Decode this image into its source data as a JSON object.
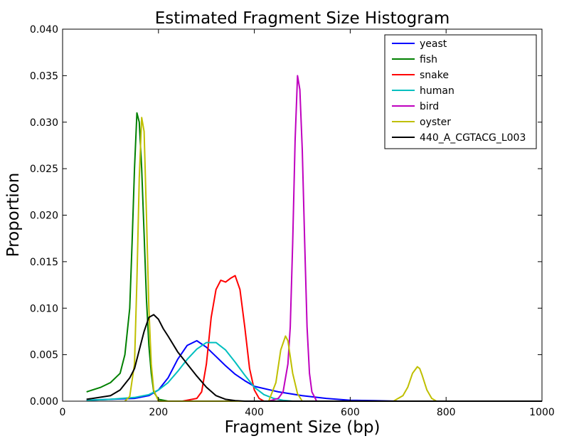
{
  "chart_data": {
    "type": "line",
    "title": "Estimated Fragment Size Histogram",
    "xlabel": "Fragment Size (bp)",
    "ylabel": "Proportion",
    "xlim": [
      0,
      1000
    ],
    "ylim": [
      0,
      0.04
    ],
    "xticks": [
      "0",
      "200",
      "400",
      "600",
      "800",
      "1000"
    ],
    "yticks": [
      "0.000",
      "0.005",
      "0.010",
      "0.015",
      "0.020",
      "0.025",
      "0.030",
      "0.035",
      "0.040"
    ],
    "grid": false,
    "legend_position": "top-right",
    "series": [
      {
        "name": "yeast",
        "color": "#0000ff",
        "x": [
          50,
          100,
          150,
          180,
          200,
          220,
          240,
          260,
          280,
          300,
          320,
          340,
          360,
          380,
          400,
          450,
          500,
          550,
          600,
          650,
          700,
          1000
        ],
        "y": [
          0.0001,
          0.0002,
          0.0003,
          0.0006,
          0.0012,
          0.0025,
          0.0045,
          0.006,
          0.0065,
          0.0058,
          0.0048,
          0.0038,
          0.0029,
          0.0022,
          0.0016,
          0.001,
          0.0006,
          0.0003,
          0.0001,
          5e-05,
          0.0,
          0.0
        ]
      },
      {
        "name": "fish",
        "color": "#008000",
        "x": [
          50,
          80,
          100,
          120,
          130,
          140,
          145,
          150,
          155,
          160,
          165,
          170,
          175,
          180,
          185,
          190,
          200,
          220,
          1000
        ],
        "y": [
          0.001,
          0.0015,
          0.002,
          0.003,
          0.005,
          0.01,
          0.017,
          0.025,
          0.031,
          0.03,
          0.025,
          0.018,
          0.011,
          0.006,
          0.003,
          0.001,
          0.0002,
          0.0,
          0.0
        ]
      },
      {
        "name": "snake",
        "color": "#ff0000",
        "x": [
          250,
          280,
          290,
          300,
          310,
          320,
          330,
          340,
          350,
          360,
          370,
          380,
          390,
          400,
          410,
          420,
          1000
        ],
        "y": [
          0.0,
          0.0003,
          0.001,
          0.004,
          0.009,
          0.012,
          0.013,
          0.0128,
          0.0132,
          0.0135,
          0.012,
          0.008,
          0.0035,
          0.0012,
          0.0003,
          0.0,
          0.0
        ]
      },
      {
        "name": "human",
        "color": "#00bfbf",
        "x": [
          50,
          100,
          150,
          180,
          200,
          220,
          240,
          260,
          280,
          300,
          320,
          340,
          360,
          380,
          400,
          420,
          440,
          460,
          480,
          1000
        ],
        "y": [
          0.0001,
          0.0002,
          0.0004,
          0.0007,
          0.0012,
          0.002,
          0.0032,
          0.0045,
          0.0056,
          0.0063,
          0.0063,
          0.0055,
          0.0042,
          0.0028,
          0.0015,
          0.0007,
          0.0003,
          0.0001,
          0.0,
          0.0
        ]
      },
      {
        "name": "bird",
        "color": "#bf00bf",
        "x": [
          430,
          450,
          460,
          470,
          475,
          480,
          485,
          490,
          495,
          500,
          505,
          510,
          515,
          520,
          530,
          1000
        ],
        "y": [
          0.0,
          0.0003,
          0.001,
          0.004,
          0.008,
          0.017,
          0.028,
          0.035,
          0.0335,
          0.027,
          0.017,
          0.008,
          0.003,
          0.001,
          0.0,
          0.0
        ]
      },
      {
        "name": "oyster",
        "color": "#bfbf00",
        "x": [
          130,
          140,
          150,
          155,
          160,
          165,
          170,
          175,
          180,
          185,
          190,
          200,
          430,
          445,
          455,
          465,
          470,
          480,
          490,
          500,
          690,
          710,
          720,
          730,
          740,
          745,
          750,
          760,
          770,
          780,
          1000
        ],
        "y": [
          0.0,
          0.0005,
          0.004,
          0.013,
          0.024,
          0.0305,
          0.029,
          0.02,
          0.01,
          0.004,
          0.0012,
          0.0,
          0.0,
          0.002,
          0.0055,
          0.007,
          0.0065,
          0.003,
          0.0008,
          0.0,
          0.0,
          0.0006,
          0.0015,
          0.003,
          0.0037,
          0.0035,
          0.0028,
          0.0012,
          0.0003,
          0.0,
          0.0
        ]
      },
      {
        "name": "440_A_CGTACG_L003",
        "color": "#000000",
        "x": [
          50,
          100,
          120,
          140,
          150,
          160,
          170,
          180,
          190,
          200,
          210,
          220,
          240,
          260,
          280,
          300,
          320,
          340,
          360,
          380,
          400,
          1000
        ],
        "y": [
          0.0002,
          0.0006,
          0.0012,
          0.0025,
          0.0035,
          0.0055,
          0.0075,
          0.009,
          0.0093,
          0.0088,
          0.0078,
          0.007,
          0.0053,
          0.004,
          0.0027,
          0.0015,
          0.0006,
          0.0002,
          5e-05,
          0.0,
          0.0,
          0.0
        ]
      }
    ]
  }
}
